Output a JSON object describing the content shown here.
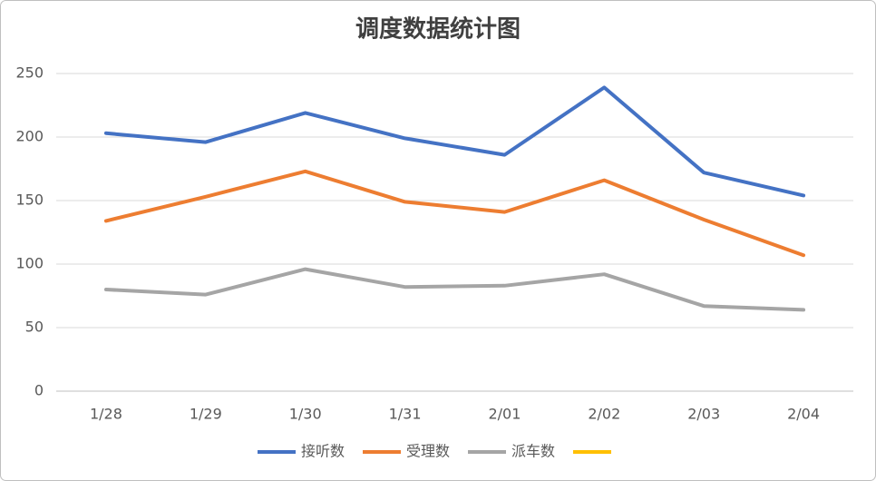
{
  "chart_data": {
    "type": "line",
    "title": "调度数据统计图",
    "categories": [
      "1/28",
      "1/29",
      "1/30",
      "1/31",
      "2/01",
      "2/02",
      "2/03",
      "2/04"
    ],
    "series": [
      {
        "name": "接听数",
        "color": "#4472c4",
        "values": [
          203,
          196,
          219,
          199,
          186,
          239,
          172,
          154
        ]
      },
      {
        "name": "受理数",
        "color": "#ed7d31",
        "values": [
          134,
          153,
          173,
          149,
          141,
          166,
          135,
          107
        ]
      },
      {
        "name": "派车数",
        "color": "#a5a5a5",
        "values": [
          80,
          76,
          96,
          82,
          83,
          92,
          67,
          64
        ]
      },
      {
        "color": "#ffc000",
        "values": [
          null,
          null,
          null,
          null,
          null,
          null,
          null,
          null
        ]
      }
    ],
    "ylim": [
      0,
      250
    ],
    "yticks": [
      0,
      50,
      100,
      150,
      200,
      250
    ],
    "grid": true,
    "legend": "bottom"
  }
}
